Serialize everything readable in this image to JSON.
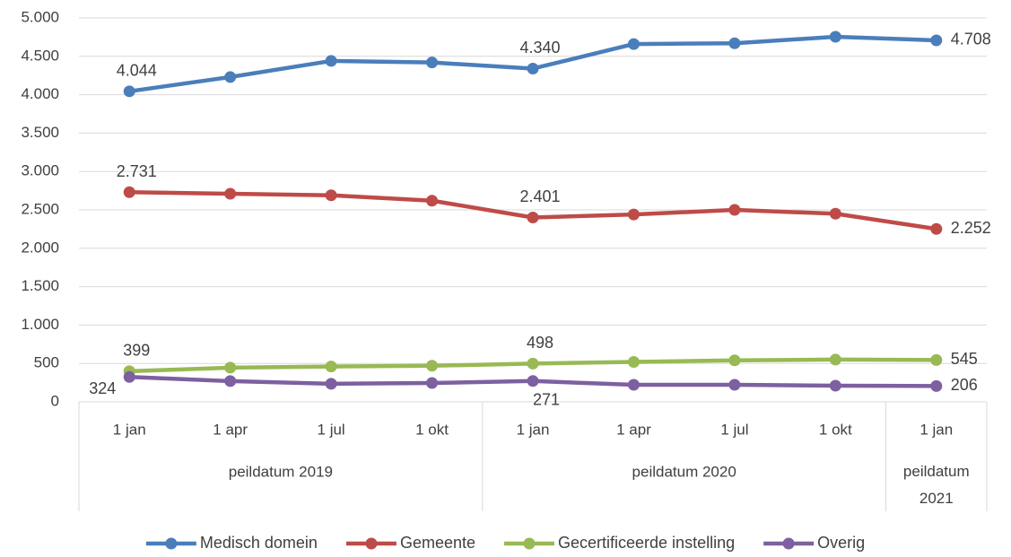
{
  "chart_data": {
    "type": "line",
    "categories": [
      "1 jan",
      "1 apr",
      "1 jul",
      "1 okt",
      "1 jan",
      "1 apr",
      "1 jul",
      "1 okt",
      "1 jan"
    ],
    "groups": [
      {
        "name": "peildatum 2019",
        "count": 4
      },
      {
        "name": "peildatum 2020",
        "count": 4
      },
      {
        "name": "peildatum 2021",
        "count": 1
      }
    ],
    "series": [
      {
        "name": "Medisch domein",
        "color": "#4a7ebb",
        "values": [
          4044,
          4230,
          4440,
          4420,
          4340,
          4660,
          4670,
          4755,
          4708
        ],
        "value_labels": [
          "4.044",
          null,
          null,
          null,
          "4.340",
          null,
          null,
          null,
          "4.708"
        ]
      },
      {
        "name": "Gemeente",
        "color": "#be4b48",
        "values": [
          2731,
          2710,
          2690,
          2620,
          2401,
          2440,
          2500,
          2450,
          2252
        ],
        "value_labels": [
          "2.731",
          null,
          null,
          null,
          "2.401",
          null,
          null,
          null,
          "2.252"
        ]
      },
      {
        "name": "Gecertificeerde instelling",
        "color": "#98b954",
        "values": [
          399,
          445,
          460,
          470,
          498,
          520,
          540,
          550,
          545
        ],
        "value_labels": [
          "399",
          null,
          null,
          null,
          "498",
          null,
          null,
          null,
          "545"
        ]
      },
      {
        "name": "Overig",
        "color": "#7d60a0",
        "values": [
          324,
          270,
          235,
          245,
          271,
          222,
          222,
          210,
          206
        ],
        "value_labels": [
          "324",
          null,
          null,
          null,
          "271",
          null,
          null,
          null,
          "206"
        ]
      }
    ],
    "ylim": [
      0,
      5000
    ],
    "yticks": [
      0,
      500,
      {
        "value": 1000,
        "label": "1.000"
      },
      {
        "value": 1500,
        "label": "1.500"
      },
      {
        "value": 2000,
        "label": "2.000"
      },
      {
        "value": 2500,
        "label": "2.500"
      },
      {
        "value": 3000,
        "label": "3.000"
      },
      {
        "value": 3500,
        "label": "3.500"
      },
      {
        "value": 4000,
        "label": "4.000"
      },
      {
        "value": 4500,
        "label": "4.500"
      },
      {
        "value": 5000,
        "label": "5.000"
      }
    ],
    "grid": true,
    "legend": "bottom"
  }
}
